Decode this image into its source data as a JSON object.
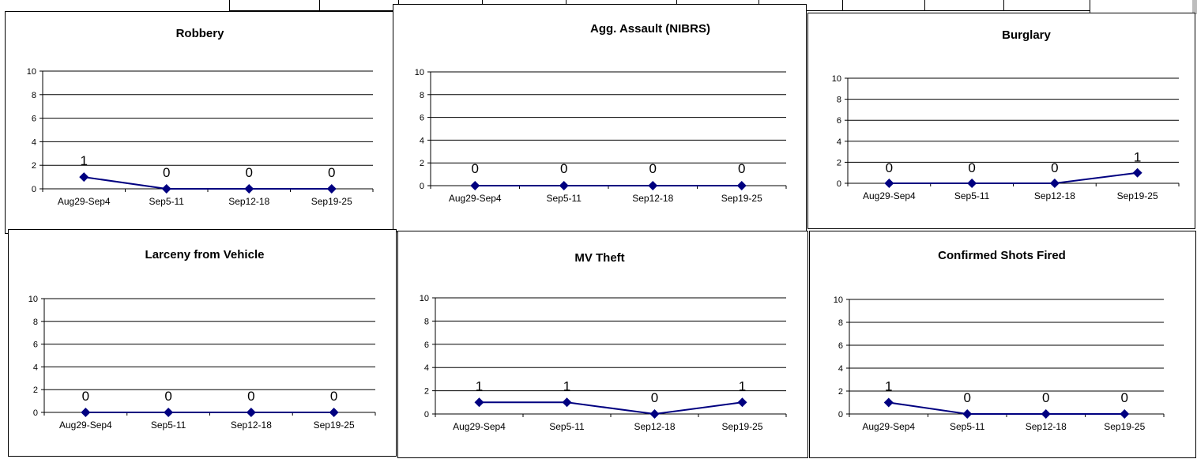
{
  "colors": {
    "series": "#000080",
    "marker": "#000080",
    "grid": "#000000",
    "border": "#000000"
  },
  "chart_data": [
    {
      "type": "line",
      "title": "Robbery",
      "categories": [
        "Aug29-Sep4",
        "Sep5-11",
        "Sep12-18",
        "Sep19-25"
      ],
      "values": [
        1,
        0,
        0,
        0
      ],
      "ylim": [
        0,
        10
      ],
      "yticks": [
        0,
        2,
        4,
        6,
        8,
        10
      ],
      "grid": true,
      "xlabel": "",
      "ylabel": "",
      "data_labels": true
    },
    {
      "type": "line",
      "title": "Agg. Assault (NIBRS)",
      "categories": [
        "Aug29-Sep4",
        "Sep5-11",
        "Sep12-18",
        "Sep19-25"
      ],
      "values": [
        0,
        0,
        0,
        0
      ],
      "ylim": [
        0,
        10
      ],
      "yticks": [
        0,
        2,
        4,
        6,
        8,
        10
      ],
      "grid": true,
      "xlabel": "",
      "ylabel": "",
      "data_labels": true
    },
    {
      "type": "line",
      "title": "Burglary",
      "categories": [
        "Aug29-Sep4",
        "Sep5-11",
        "Sep12-18",
        "Sep19-25"
      ],
      "values": [
        0,
        0,
        0,
        1
      ],
      "ylim": [
        0,
        10
      ],
      "yticks": [
        0,
        2,
        4,
        6,
        8,
        10
      ],
      "grid": true,
      "xlabel": "",
      "ylabel": "",
      "data_labels": true
    },
    {
      "type": "line",
      "title": "Larceny from Vehicle",
      "categories": [
        "Aug29-Sep4",
        "Sep5-11",
        "Sep12-18",
        "Sep19-25"
      ],
      "values": [
        0,
        0,
        0,
        0
      ],
      "ylim": [
        0,
        10
      ],
      "yticks": [
        0,
        2,
        4,
        6,
        8,
        10
      ],
      "grid": true,
      "xlabel": "",
      "ylabel": "",
      "data_labels": true
    },
    {
      "type": "line",
      "title": "MV Theft",
      "categories": [
        "Aug29-Sep4",
        "Sep5-11",
        "Sep12-18",
        "Sep19-25"
      ],
      "values": [
        1,
        1,
        0,
        1
      ],
      "ylim": [
        0,
        10
      ],
      "yticks": [
        0,
        2,
        4,
        6,
        8,
        10
      ],
      "grid": true,
      "xlabel": "",
      "ylabel": "",
      "data_labels": true
    },
    {
      "type": "line",
      "title": "Confirmed Shots Fired",
      "categories": [
        "Aug29-Sep4",
        "Sep5-11",
        "Sep12-18",
        "Sep19-25"
      ],
      "values": [
        1,
        0,
        0,
        0
      ],
      "ylim": [
        0,
        10
      ],
      "yticks": [
        0,
        2,
        4,
        6,
        8,
        10
      ],
      "grid": true,
      "xlabel": "",
      "ylabel": "",
      "data_labels": true
    }
  ]
}
